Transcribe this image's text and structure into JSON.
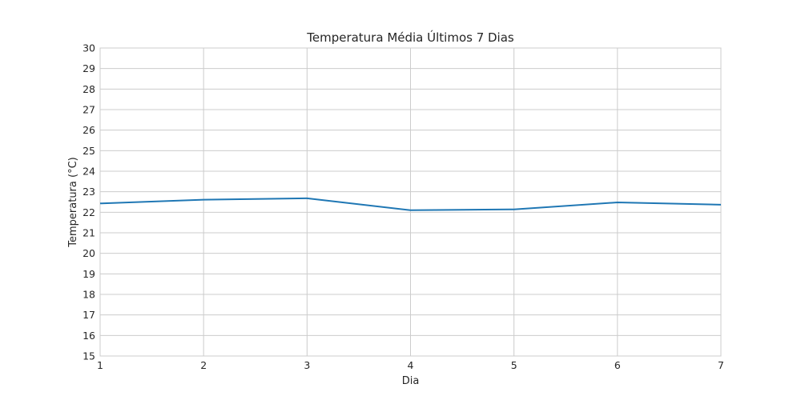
{
  "chart_data": {
    "type": "line",
    "title": "Temperatura Média Últimos 7 Dias",
    "xlabel": "Dia",
    "ylabel": "Temperatura (°C)",
    "x": [
      1,
      2,
      3,
      4,
      5,
      6,
      7
    ],
    "series": [
      {
        "values": [
          22.43,
          22.61,
          22.68,
          22.1,
          22.14,
          22.48,
          22.37
        ]
      }
    ],
    "xlim": [
      1,
      7
    ],
    "ylim": [
      15,
      30
    ],
    "xticks": [
      "1",
      "2",
      "3",
      "4",
      "5",
      "6",
      "7"
    ],
    "yticks": [
      "15",
      "16",
      "17",
      "18",
      "19",
      "20",
      "21",
      "22",
      "23",
      "24",
      "25",
      "26",
      "27",
      "28",
      "29",
      "30"
    ],
    "grid": true,
    "legend": "none",
    "colors": {
      "series": "#1f77b4",
      "grid": "#cccccc"
    }
  }
}
